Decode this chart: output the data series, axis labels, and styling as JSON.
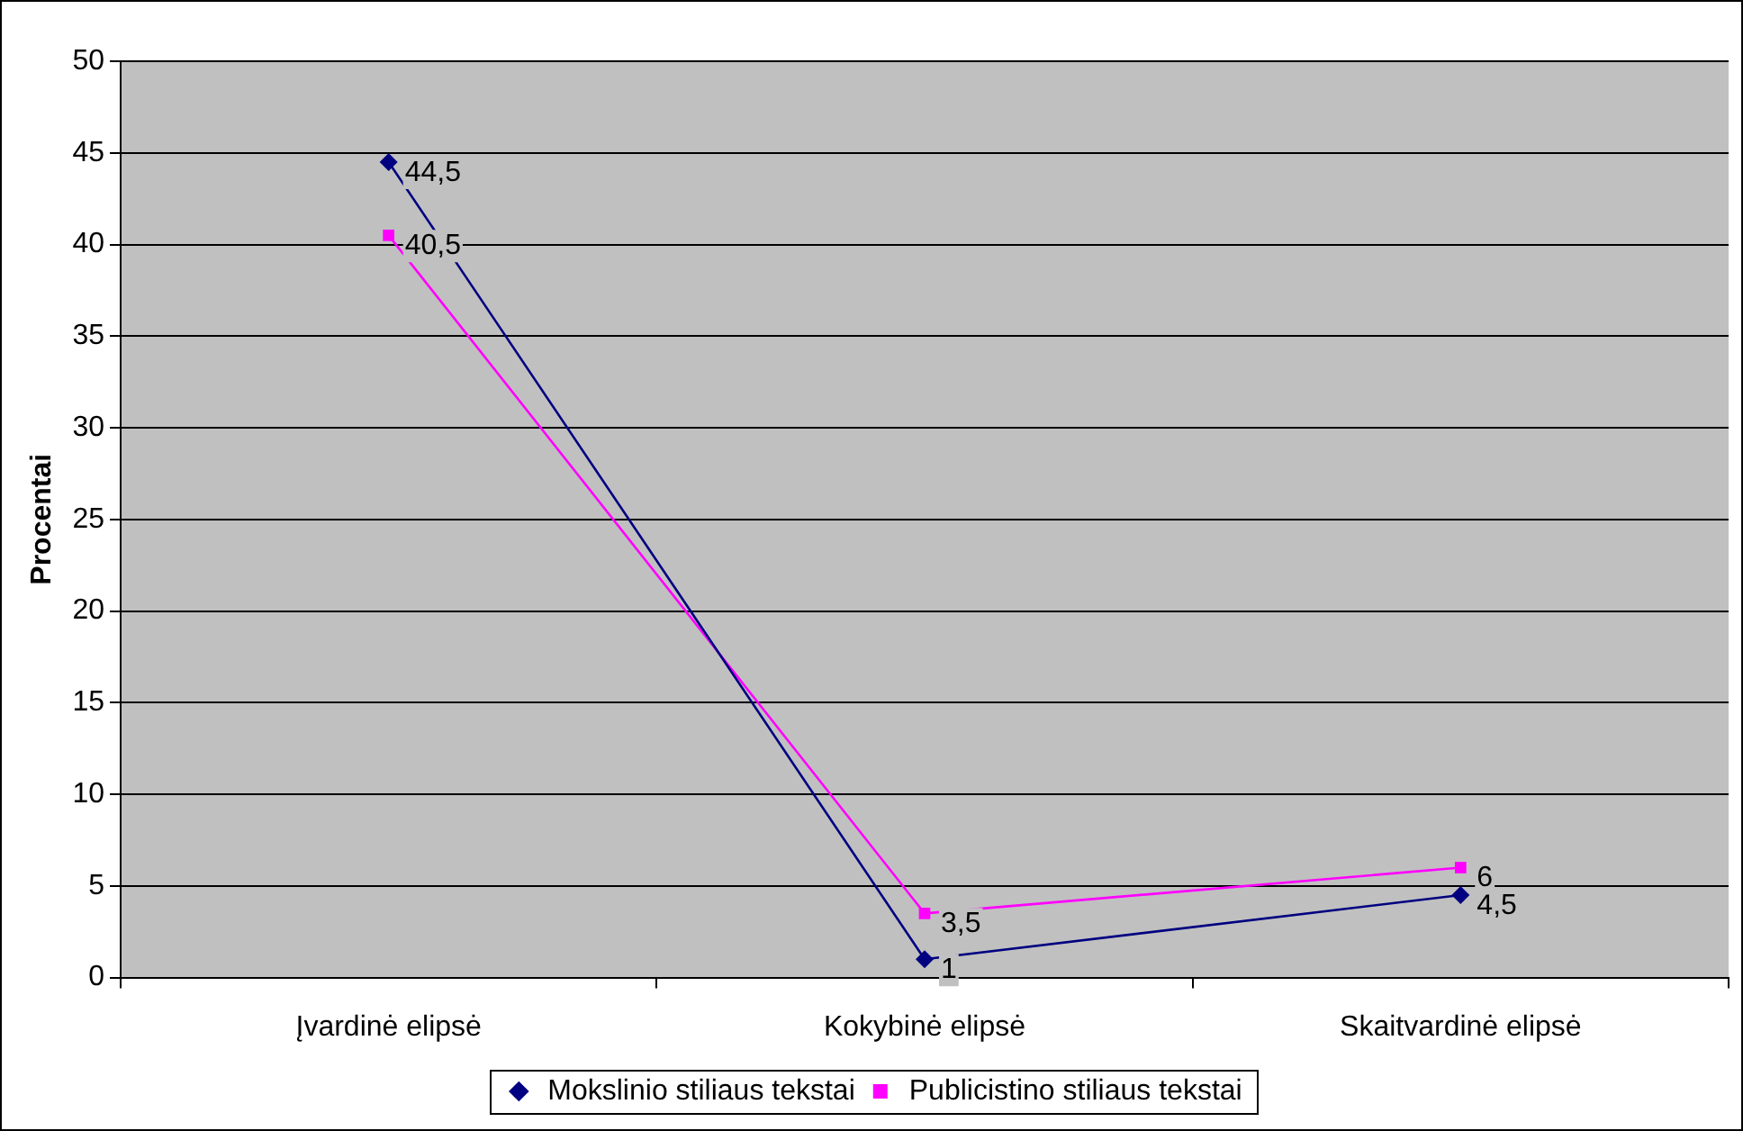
{
  "chart_data": {
    "type": "line",
    "ylabel": "Procentai",
    "categories": [
      "Įvardinė elipsė",
      "Kokybinė elipsė",
      "Skaitvardinė elipsė"
    ],
    "series": [
      {
        "name": "Mokslinio stiliaus tekstai",
        "color": "#000080",
        "marker": "diamond",
        "values": [
          44.5,
          1,
          4.5
        ],
        "value_labels": [
          "44,5",
          "1",
          "4,5"
        ]
      },
      {
        "name": "Publicistino stiliaus tekstai",
        "color": "#ff00ff",
        "marker": "square",
        "values": [
          40.5,
          3.5,
          6
        ],
        "value_labels": [
          "40,5",
          "3,5",
          "6"
        ]
      }
    ],
    "ylim": [
      0,
      50
    ],
    "yticks": [
      0,
      5,
      10,
      15,
      20,
      25,
      30,
      35,
      40,
      45,
      50
    ],
    "grid": "y",
    "legend": "bottom"
  }
}
